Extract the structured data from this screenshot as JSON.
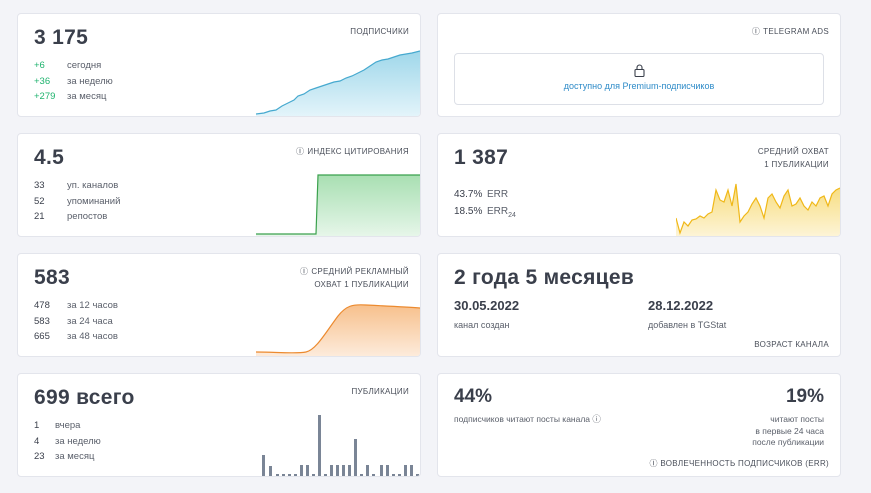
{
  "subscribers": {
    "value": "3 175",
    "caption": "ПОДПИСЧИКИ",
    "rows": [
      {
        "num": "+6",
        "label": "сегодня"
      },
      {
        "num": "+36",
        "label": "за неделю"
      },
      {
        "num": "+279",
        "label": "за месяц"
      }
    ],
    "color": "#5bb8d6"
  },
  "ads": {
    "caption": "TELEGRAM ADS",
    "link": "доступно для Premium-подписчиков"
  },
  "citation": {
    "value": "4.5",
    "caption": "ИНДЕКС ЦИТИРОВАНИЯ",
    "rows": [
      {
        "num": "33",
        "label": "уп. каналов"
      },
      {
        "num": "52",
        "label": "упоминаний"
      },
      {
        "num": "21",
        "label": "репостов"
      }
    ],
    "color": "#3aa14d"
  },
  "reach": {
    "value": "1 387",
    "caption1": "СРЕДНИЙ ОХВАТ",
    "caption2": "1 ПУБЛИКАЦИИ",
    "err": {
      "num": "43.7%",
      "label": "ERR"
    },
    "err24": {
      "num": "18.5%",
      "label": "ERR",
      "sub": "24"
    },
    "color": "#f2c230"
  },
  "ad_reach": {
    "value": "583",
    "caption1": "СРЕДНИЙ РЕКЛАМНЫЙ",
    "caption2": "ОХВАТ 1 ПУБЛИКАЦИИ",
    "rows": [
      {
        "num": "478",
        "label": "за 12 часов"
      },
      {
        "num": "583",
        "label": "за 24 часа"
      },
      {
        "num": "665",
        "label": "за 48 часов"
      }
    ],
    "color": "#f0913a"
  },
  "age": {
    "value": "2 года 5 месяцев",
    "created_date": "30.05.2022",
    "created_label": "канал создан",
    "added_date": "28.12.2022",
    "added_label": "добавлен в TGStat",
    "caption": "ВОЗРАСТ КАНАЛА"
  },
  "posts": {
    "value": "699 всего",
    "caption": "ПУБЛИКАЦИИ",
    "rows": [
      {
        "num": "1",
        "label": "вчера"
      },
      {
        "num": "4",
        "label": "за неделю"
      },
      {
        "num": "23",
        "label": "за месяц"
      }
    ],
    "color": "#7a8596"
  },
  "engagement": {
    "pct1": "44%",
    "label1": "подписчиков читают посты канала",
    "pct2": "19%",
    "label2_1": "читают посты",
    "label2_2": "в первые 24 часа",
    "label2_3": "после публикации",
    "caption": "ВОВЛЕЧЕННОСТЬ ПОДПИСЧИКОВ (ERR)"
  }
}
